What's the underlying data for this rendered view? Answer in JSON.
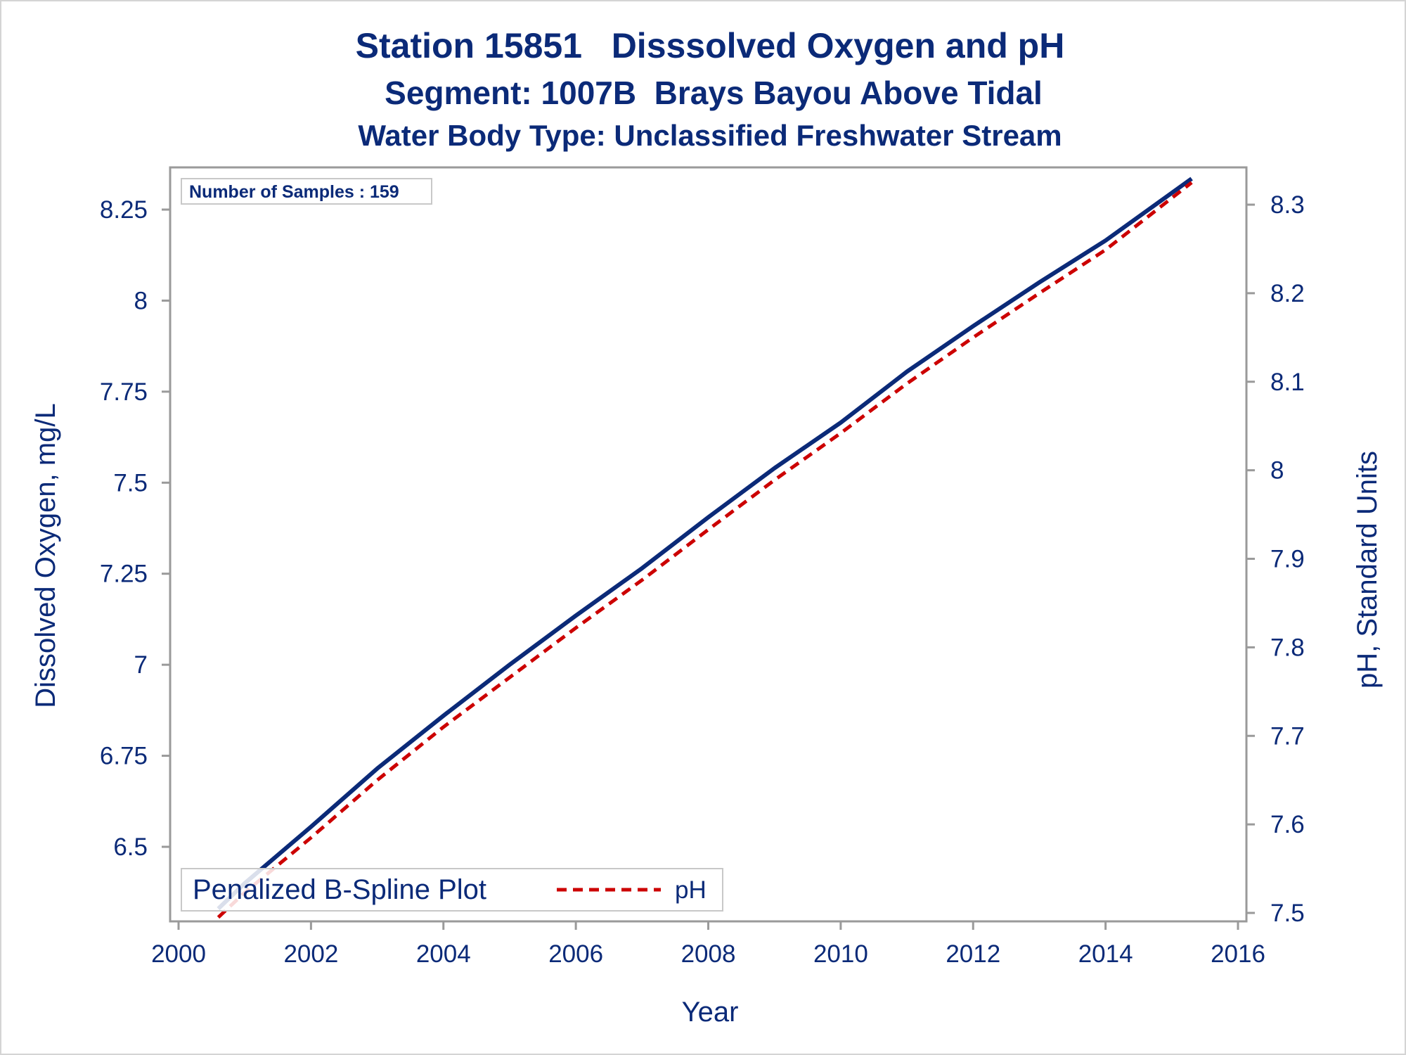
{
  "chart_data": {
    "type": "line",
    "title": "Station 15851   Disssolved Oxygen and pH",
    "subtitle": "Segment: 1007B  Brays Bayou Above Tidal",
    "subtitle2": "Water Body Type: Unclassified Freshwater Stream",
    "xlabel": "Year",
    "ylabel_left": "Dissolved Oxygen, mg/L",
    "ylabel_right": "pH, Standard Units",
    "xlim": [
      2000,
      2016
    ],
    "ylim_left": [
      6.33,
      8.35
    ],
    "ylim_right": [
      7.495,
      8.33
    ],
    "x_ticks": [
      2000,
      2002,
      2004,
      2006,
      2008,
      2010,
      2012,
      2014,
      2016
    ],
    "x_tick_labels": [
      "2000",
      "2002",
      "2004",
      "2006",
      "2008",
      "2010",
      "2012",
      "2014",
      "2016"
    ],
    "y_left_ticks": [
      6.5,
      6.75,
      7,
      7.25,
      7.5,
      7.75,
      8,
      8.25
    ],
    "y_left_tick_labels": [
      "6.5",
      "6.75",
      "7",
      "7.25",
      "7.5",
      "7.75",
      "8",
      "8.25"
    ],
    "y_right_ticks": [
      7.5,
      7.6,
      7.7,
      7.8,
      7.9,
      8.0,
      8.1,
      8.2,
      8.3
    ],
    "y_right_tick_labels": [
      "7.5",
      "7.6",
      "7.7",
      "7.8",
      "7.9",
      "8",
      "8.1",
      "8.2",
      "8.3"
    ],
    "annotation": "Number of Samples : 159",
    "legend": {
      "title": "Penalized B-Spline Plot",
      "position": "bottom-left",
      "entries": [
        {
          "label": "pH",
          "color": "#cc0000",
          "style": "dashed"
        }
      ]
    },
    "series": [
      {
        "axis": "left",
        "color": "#0b2a78",
        "style": "solid",
        "x": [
          2000.6,
          2001.0,
          2002.0,
          2003.0,
          2004.0,
          2005.0,
          2006.0,
          2007.0,
          2008.0,
          2009.0,
          2010.0,
          2011.0,
          2012.0,
          2013.0,
          2014.0,
          2015.3
        ],
        "y": [
          6.33,
          6.4,
          6.555,
          6.715,
          6.86,
          7.0,
          7.135,
          7.265,
          7.405,
          7.54,
          7.665,
          7.805,
          7.93,
          8.05,
          8.165,
          8.335
        ]
      },
      {
        "name": "pH",
        "axis": "right",
        "color": "#cc0000",
        "style": "dashed",
        "x": [
          2000.6,
          2001.0,
          2002.0,
          2003.0,
          2004.0,
          2005.0,
          2006.0,
          2007.0,
          2008.0,
          2009.0,
          2010.0,
          2011.0,
          2012.0,
          2013.0,
          2014.0,
          2015.3
        ],
        "y": [
          7.495,
          7.523,
          7.585,
          7.65,
          7.71,
          7.766,
          7.822,
          7.876,
          7.933,
          7.989,
          8.042,
          8.098,
          8.15,
          8.2,
          8.249,
          8.325
        ]
      }
    ]
  }
}
